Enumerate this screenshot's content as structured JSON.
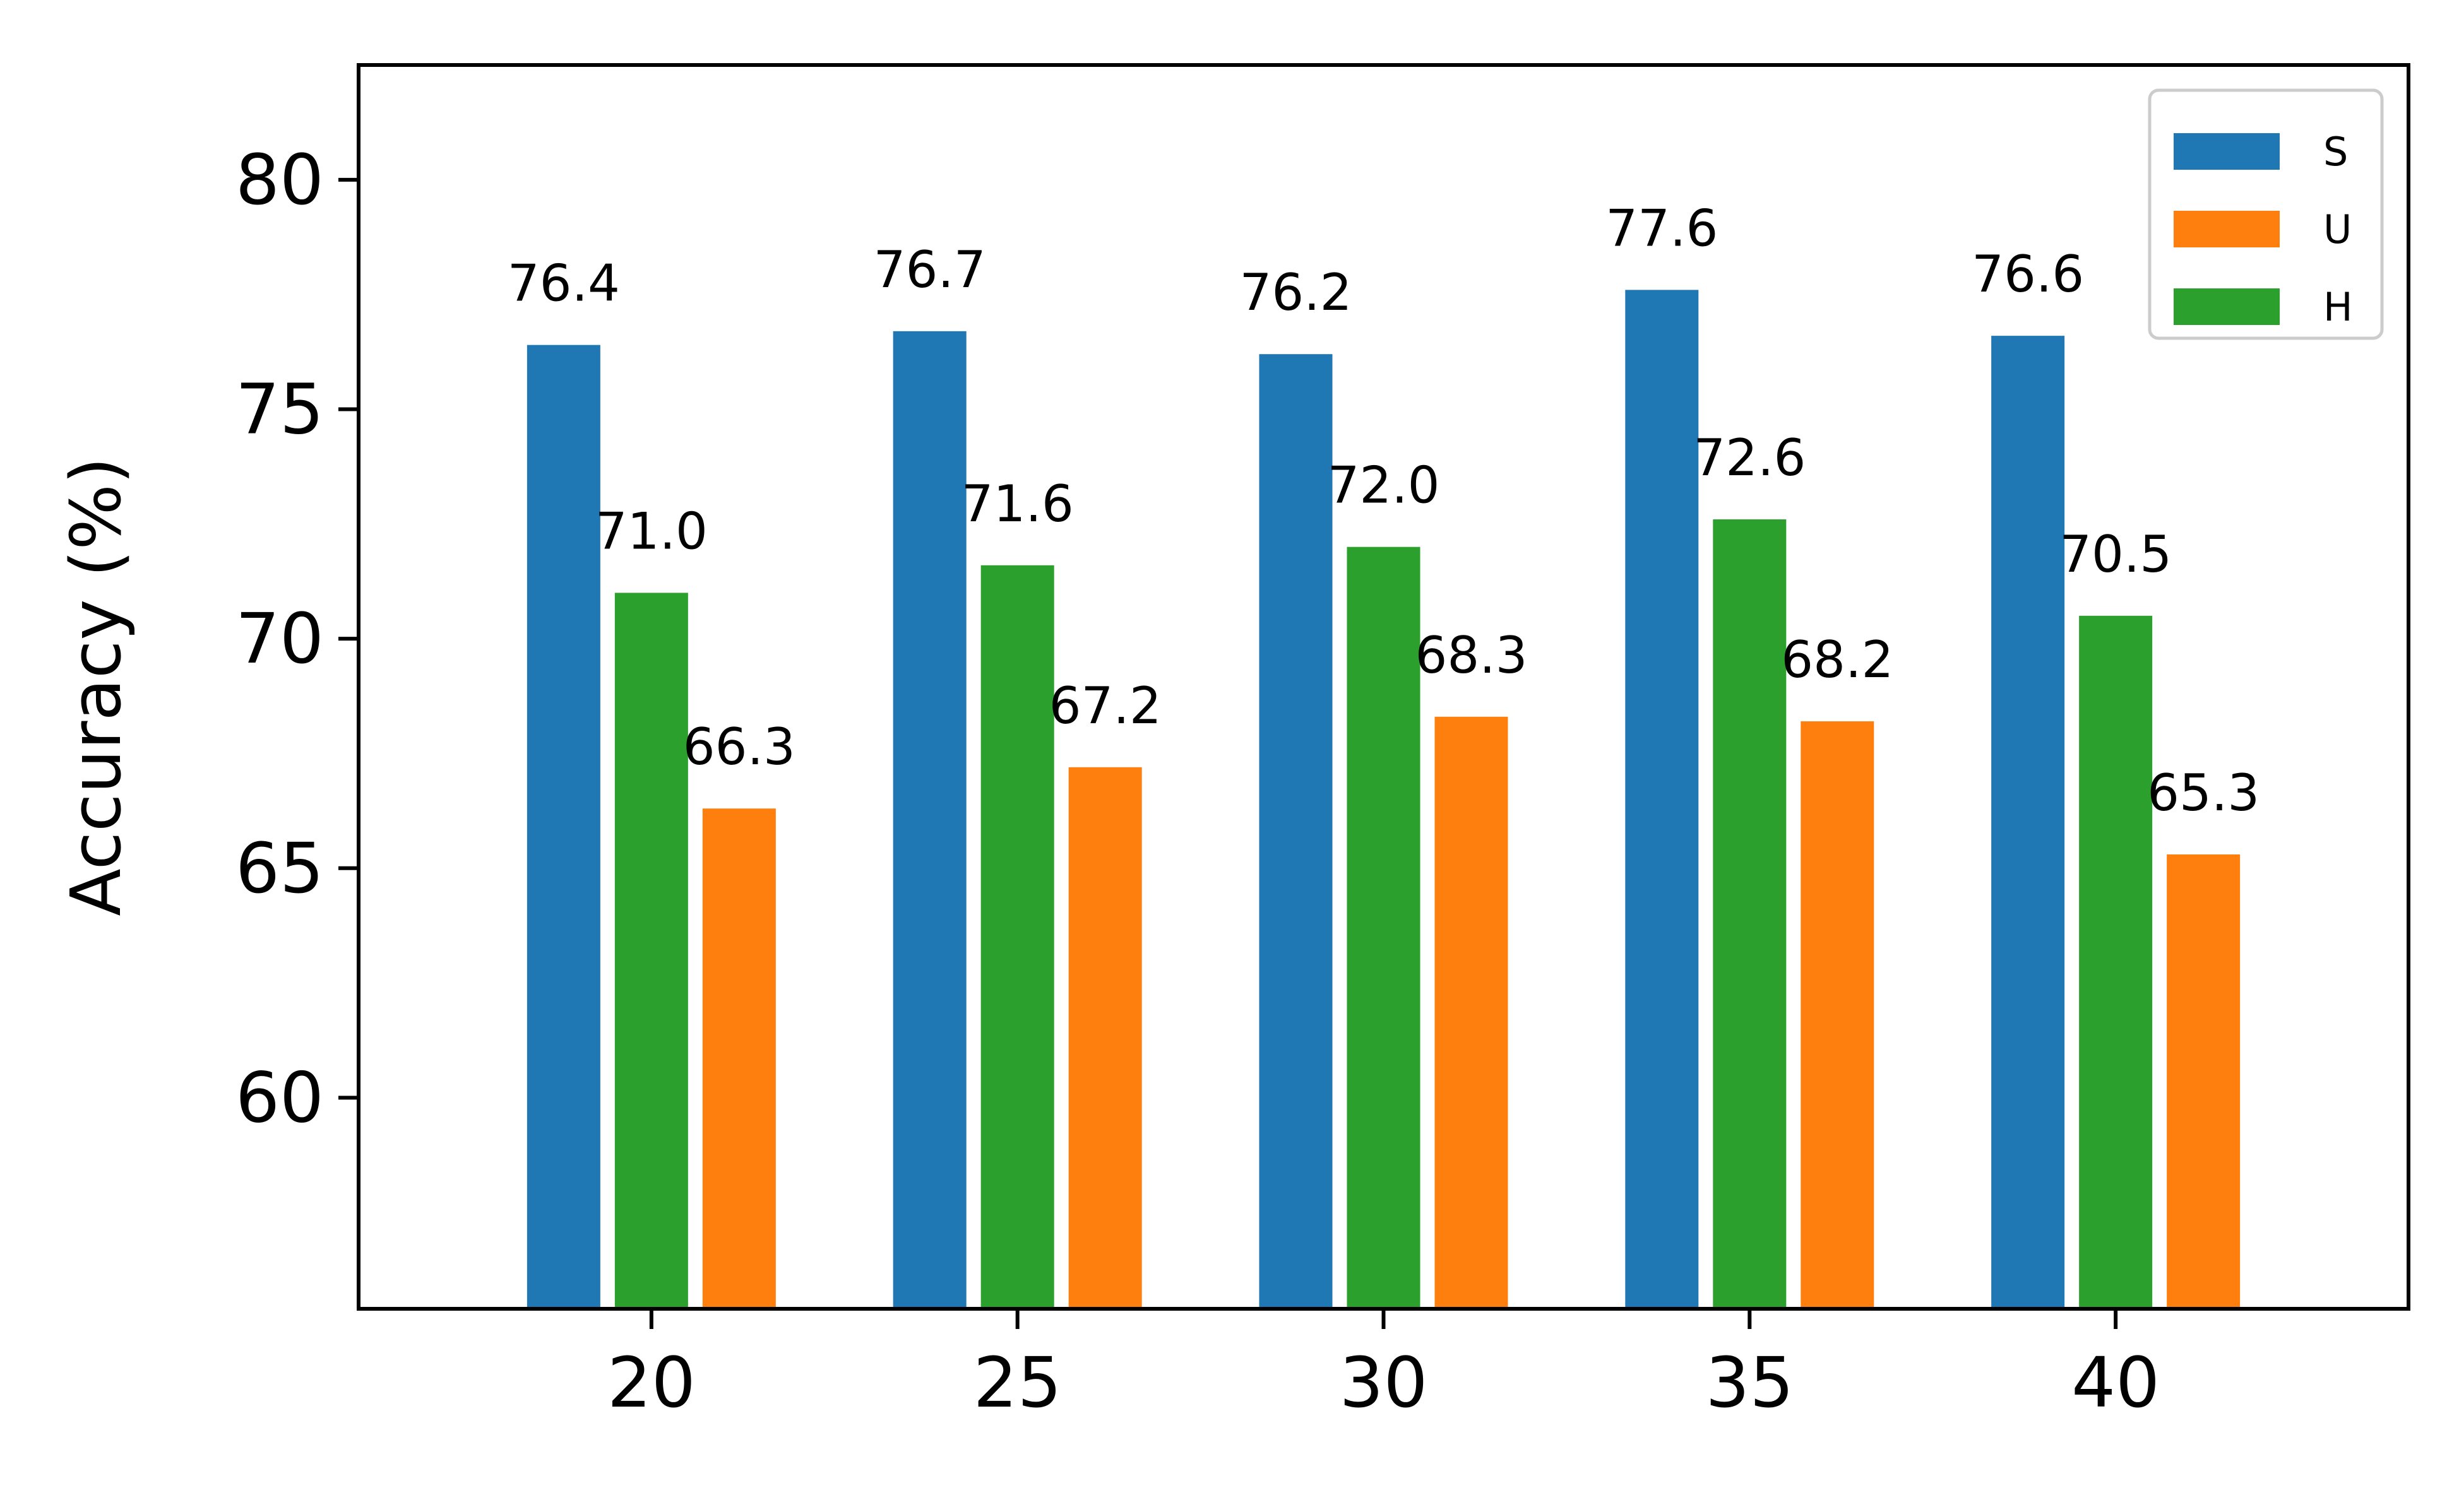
{
  "chart_data": {
    "type": "bar",
    "categories": [
      "20",
      "25",
      "30",
      "35",
      "40"
    ],
    "series": [
      {
        "name": "S",
        "color": "#1f77b4",
        "values": [
          76.4,
          76.7,
          76.2,
          77.6,
          76.6
        ],
        "labels": [
          "76.4",
          "76.7",
          "76.2",
          "77.6",
          "76.6"
        ]
      },
      {
        "name": "H",
        "color": "#2ca02c",
        "values": [
          71.0,
          71.6,
          72.0,
          72.6,
          70.5
        ],
        "labels": [
          "71.0",
          "71.6",
          "72.0",
          "72.6",
          "70.5"
        ]
      },
      {
        "name": "U",
        "color": "#ff7f0e",
        "values": [
          66.3,
          67.2,
          68.3,
          68.2,
          65.3
        ],
        "labels": [
          "66.3",
          "67.2",
          "68.3",
          "68.2",
          "65.3"
        ]
      }
    ],
    "legend_order": [
      "S",
      "U",
      "H"
    ],
    "legend_position": "top-right",
    "ylabel": "Accuracy (%)",
    "xlabel": "",
    "yticks": [
      60,
      65,
      70,
      75,
      80
    ],
    "ytick_labels": [
      "60",
      "65",
      "70",
      "75",
      "80"
    ],
    "ylim": [
      55.4,
      82.5
    ],
    "xlim": [
      16.0,
      44.0
    ],
    "grid": false
  }
}
